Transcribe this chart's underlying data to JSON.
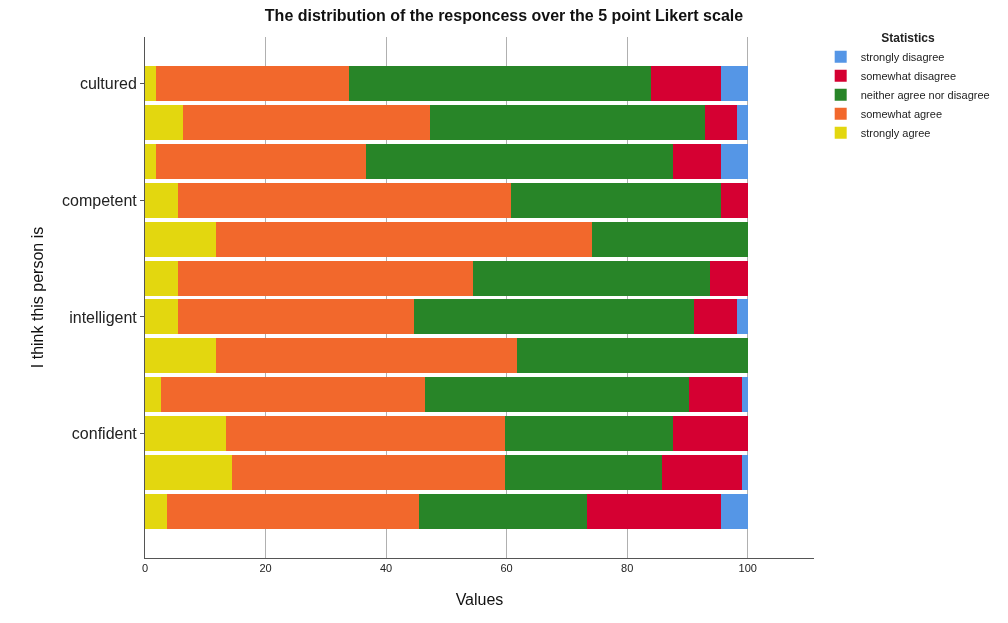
{
  "chart_data": {
    "type": "bar",
    "orientation": "horizontal",
    "stacked": true,
    "title": "The distribution of the responcess over the 5 point Likert scale",
    "xlabel": "Values",
    "ylabel": "I think this person is",
    "legend_title": "Statistics",
    "categories": [
      "cultured",
      null,
      null,
      "competent",
      null,
      null,
      "intelligent",
      null,
      null,
      "confident",
      null,
      null
    ],
    "series": [
      {
        "name": "strongly agree",
        "color": "#e3d70f",
        "values": [
          1.8,
          6.3,
          1.8,
          5.4,
          11.7,
          5.4,
          5.4,
          11.7,
          2.7,
          13.4,
          14.4,
          3.6
        ]
      },
      {
        "name": "somewhat agree",
        "color": "#f2682c",
        "values": [
          32.1,
          41.0,
          34.9,
          55.4,
          62.5,
          49.1,
          39.2,
          50.0,
          43.7,
          46.4,
          45.4,
          41.9
        ]
      },
      {
        "name": "neither agree nor disagree",
        "color": "#288528",
        "values": [
          50.1,
          45.6,
          50.9,
          34.8,
          25.8,
          39.3,
          46.5,
          38.3,
          43.9,
          27.8,
          26.0,
          27.8
        ]
      },
      {
        "name": "somewhat disagree",
        "color": "#d50032",
        "values": [
          11.5,
          5.4,
          7.9,
          4.4,
          0,
          6.2,
          7.1,
          0,
          8.8,
          12.4,
          13.3,
          22.2
        ]
      },
      {
        "name": "strongly disagree",
        "color": "#5596e6",
        "values": [
          4.5,
          1.7,
          4.5,
          0,
          0,
          0,
          1.8,
          0,
          0.9,
          0,
          0.9,
          4.5
        ]
      }
    ],
    "xlim": [
      0,
      111
    ],
    "xticks": [
      0,
      20,
      40,
      60,
      80,
      100
    ],
    "grid": "x",
    "legend": "top right"
  }
}
